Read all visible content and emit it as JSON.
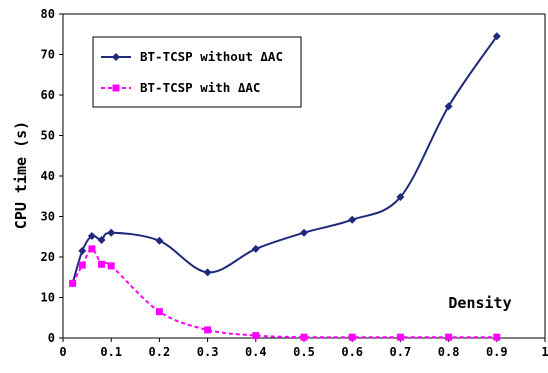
{
  "chart_data": {
    "type": "line",
    "title": "",
    "xlabel": "Density",
    "ylabel": "CPU time (s)",
    "xlim": [
      0,
      1
    ],
    "ylim": [
      0,
      80
    ],
    "xticks": [
      "0",
      "0.1",
      "0.2",
      "0.3",
      "0.4",
      "0.5",
      "0.6",
      "0.7",
      "0.8",
      "0.9",
      "1"
    ],
    "yticks": [
      "0",
      "10",
      "20",
      "30",
      "40",
      "50",
      "60",
      "70",
      "80"
    ],
    "grid": false,
    "legend_position": "top-left",
    "series": [
      {
        "name": "BT-TCSP without ΔAC",
        "color": "#1f2a7a",
        "line_style": "solid",
        "marker": "diamond",
        "x": [
          0.02,
          0.04,
          0.06,
          0.08,
          0.1,
          0.2,
          0.3,
          0.4,
          0.5,
          0.6,
          0.7,
          0.8,
          0.9
        ],
        "y": [
          13.5,
          21.5,
          25.2,
          24.2,
          26.0,
          24.0,
          16.2,
          22.0,
          26.0,
          29.2,
          34.8,
          57.2,
          74.5
        ]
      },
      {
        "name": "BT-TCSP with ΔAC",
        "color": "#ff00ff",
        "line_style": "dashed",
        "marker": "square",
        "x": [
          0.02,
          0.04,
          0.06,
          0.08,
          0.1,
          0.2,
          0.3,
          0.4,
          0.5,
          0.6,
          0.7,
          0.8,
          0.9
        ],
        "y": [
          13.5,
          18.0,
          22.0,
          18.2,
          17.8,
          6.5,
          2.0,
          0.6,
          0.2,
          0.2,
          0.2,
          0.2,
          0.2
        ]
      }
    ]
  }
}
